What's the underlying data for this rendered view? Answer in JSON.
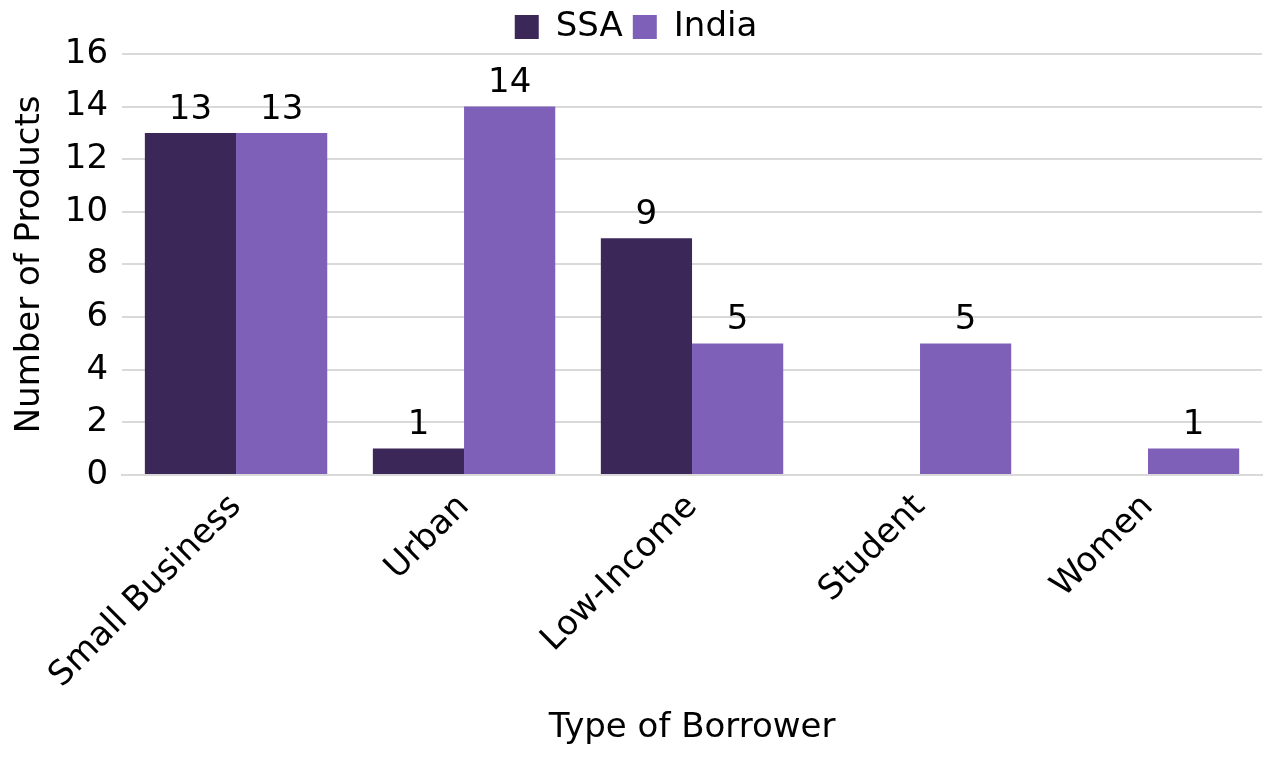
{
  "chart_data": {
    "type": "bar",
    "xlabel": "Type of Borrower",
    "ylabel": "Number of Products",
    "categories": [
      "Small Business",
      "Urban",
      "Low-Income",
      "Student",
      "Women"
    ],
    "series": [
      {
        "name": "SSA",
        "color": "#3b2858",
        "values": [
          13,
          1,
          9,
          null,
          null
        ]
      },
      {
        "name": "India",
        "color": "#7f60b9",
        "values": [
          13,
          14,
          5,
          5,
          1
        ]
      }
    ],
    "ylim": [
      0,
      16
    ],
    "yticks": [
      0,
      2,
      4,
      6,
      8,
      10,
      12,
      14,
      16
    ],
    "grid": "y",
    "legend": "top",
    "data_labels": true
  }
}
